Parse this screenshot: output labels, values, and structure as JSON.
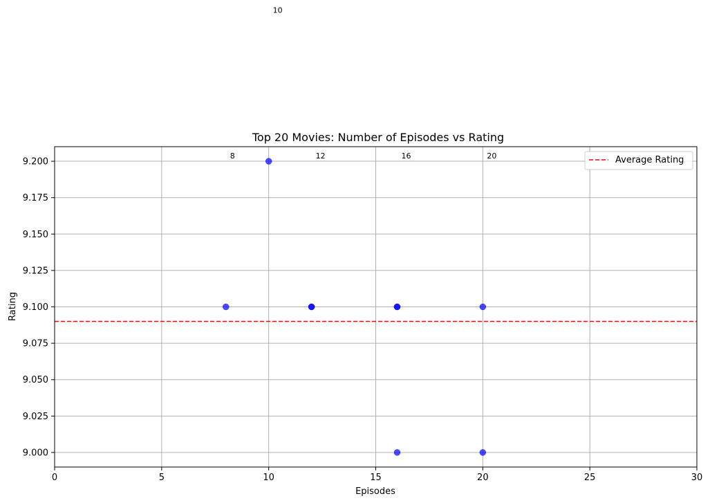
{
  "chart_data": {
    "type": "scatter",
    "title": "Top 20 Movies: Number of Episodes vs Rating",
    "xlabel": "Episodes",
    "ylabel": "Rating",
    "xlim": [
      0,
      30
    ],
    "ylim": [
      8.99,
      9.21
    ],
    "xticks": [
      0,
      5,
      10,
      15,
      20,
      25,
      30
    ],
    "xtick_labels": [
      "0",
      "5",
      "10",
      "15",
      "20",
      "25",
      "30"
    ],
    "yticks": [
      9.0,
      9.025,
      9.05,
      9.075,
      9.1,
      9.125,
      9.15,
      9.175,
      9.2
    ],
    "ytick_labels": [
      "9.000",
      "9.025",
      "9.050",
      "9.075",
      "9.100",
      "9.125",
      "9.150",
      "9.175",
      "9.200"
    ],
    "grid": true,
    "points": [
      {
        "x": 8,
        "y": 9.1
      },
      {
        "x": 10,
        "y": 9.2
      },
      {
        "x": 12,
        "y": 9.1
      },
      {
        "x": 12,
        "y": 9.1
      },
      {
        "x": 16,
        "y": 9.1
      },
      {
        "x": 16,
        "y": 9.1
      },
      {
        "x": 16,
        "y": 9.0
      },
      {
        "x": 20,
        "y": 9.1
      },
      {
        "x": 20,
        "y": 9.0
      }
    ],
    "point_color": "#0000ff",
    "annotations": [
      {
        "text": "8",
        "x": 8,
        "y": 9.2
      },
      {
        "text": "10",
        "x": 10,
        "y": 9.3
      },
      {
        "text": "12",
        "x": 12,
        "y": 9.2
      },
      {
        "text": "16",
        "x": 16,
        "y": 9.2
      },
      {
        "text": "20",
        "x": 20,
        "y": 9.2
      }
    ],
    "reference_line": {
      "y": 9.09,
      "color": "#ff0000",
      "style": "dashed",
      "label": "Average Rating"
    },
    "legend": {
      "placement": "top-right",
      "entries": [
        "Average Rating"
      ]
    }
  }
}
